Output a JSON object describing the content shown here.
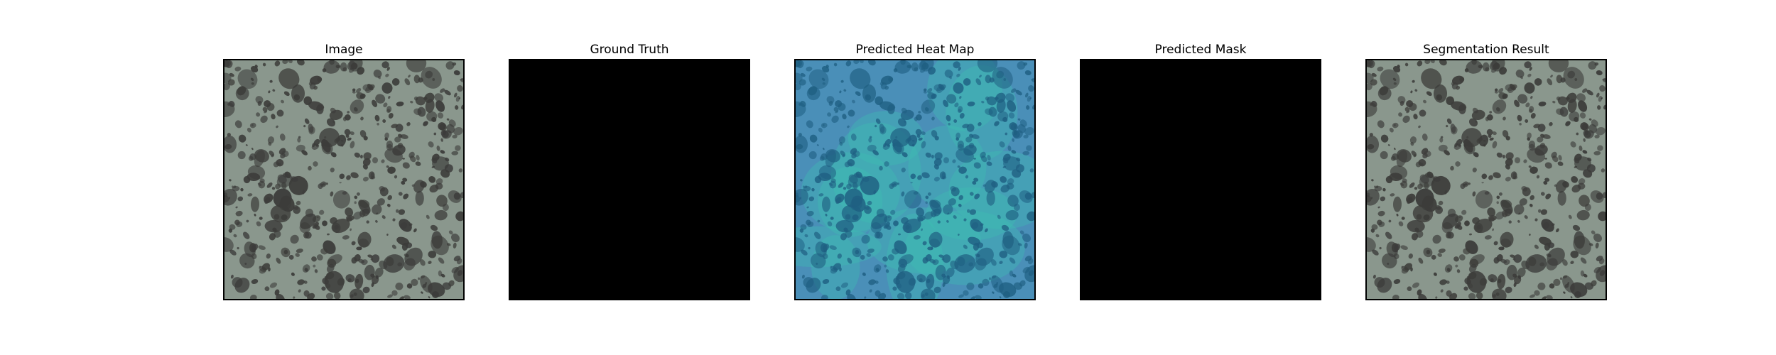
{
  "panels": [
    {
      "title": "Image",
      "kind": "texture"
    },
    {
      "title": "Ground Truth",
      "kind": "black"
    },
    {
      "title": "Predicted Heat Map",
      "kind": "heatmap"
    },
    {
      "title": "Predicted Mask",
      "kind": "black"
    },
    {
      "title": "Segmentation Result",
      "kind": "texture"
    }
  ],
  "colors": {
    "texture_background": "#8a978d",
    "texture_spots": "#3c3c3a",
    "heatmap_background": "#4a8fb8",
    "heatmap_hot": "#3bbfb3",
    "heatmap_spots": "#1f5f82",
    "mask": "#000000"
  }
}
